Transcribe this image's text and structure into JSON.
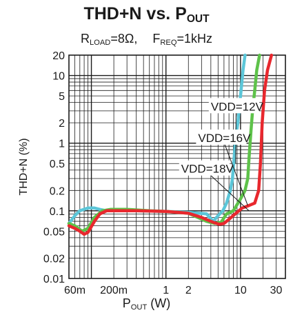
{
  "chart_data": {
    "type": "line",
    "title_main": "THD+N vs. P",
    "title_sub": "OUT",
    "conditions": [
      {
        "prefix": "R",
        "sub": "LOAD",
        "suffix": "=8Ω,"
      },
      {
        "prefix": "F",
        "sub": "REQ",
        "suffix": "=1kHz"
      }
    ],
    "xlabel_main": "P",
    "xlabel_sub": "OUT",
    "xlabel_unit": " (W)",
    "ylabel": "THD+N (%)",
    "xscale": "log",
    "yscale": "log",
    "xlim": [
      0.05,
      40
    ],
    "ylim": [
      0.01,
      20
    ],
    "grid": true,
    "xticks": [
      {
        "value": 0.06,
        "label": "60m"
      },
      {
        "value": 0.2,
        "label": "200m"
      },
      {
        "value": 1,
        "label": "1"
      },
      {
        "value": 2,
        "label": "2"
      },
      {
        "value": 10,
        "label": "10"
      },
      {
        "value": 30,
        "label": "30"
      }
    ],
    "yticks": [
      {
        "value": 0.01,
        "label": "0.01"
      },
      {
        "value": 0.02,
        "label": "0.02"
      },
      {
        "value": 0.05,
        "label": "0.05"
      },
      {
        "value": 0.1,
        "label": "0.1"
      },
      {
        "value": 0.2,
        "label": "0.2"
      },
      {
        "value": 0.5,
        "label": "0.5"
      },
      {
        "value": 1,
        "label": "1"
      },
      {
        "value": 2,
        "label": "2"
      },
      {
        "value": 5,
        "label": "5"
      },
      {
        "value": 10,
        "label": "10"
      },
      {
        "value": 20,
        "label": "20"
      }
    ],
    "series": [
      {
        "name": "VDD=12V",
        "color": "#5cc6d8",
        "x": [
          0.05,
          0.06,
          0.07,
          0.09,
          0.11,
          0.13,
          0.16,
          0.2,
          0.4,
          1,
          2,
          3.5,
          4.3,
          5,
          5.8,
          6.5,
          7.3,
          7.8,
          8.2,
          8.6,
          9.2,
          10,
          10.8,
          11.5
        ],
        "y": [
          0.065,
          0.085,
          0.1,
          0.11,
          0.11,
          0.105,
          0.1,
          0.1,
          0.1,
          0.098,
          0.095,
          0.09,
          0.07,
          0.085,
          0.1,
          0.13,
          0.2,
          0.3,
          0.6,
          1.2,
          2.0,
          5,
          12,
          20
        ]
      },
      {
        "name": "VDD=16V",
        "color": "#5ec24a",
        "x": [
          0.05,
          0.06,
          0.075,
          0.09,
          0.11,
          0.14,
          0.18,
          0.3,
          0.6,
          1,
          2,
          3.5,
          4.5,
          5.5,
          6.5,
          8,
          10,
          11.5,
          12.5,
          13,
          13.8,
          14.5,
          15.5,
          16.5,
          18
        ],
        "y": [
          0.065,
          0.06,
          0.05,
          0.055,
          0.08,
          0.1,
          0.105,
          0.105,
          0.1,
          0.098,
          0.092,
          0.07,
          0.065,
          0.068,
          0.09,
          0.1,
          0.15,
          0.2,
          0.3,
          0.6,
          1.5,
          3,
          6,
          12,
          20
        ]
      },
      {
        "name": "VDD=18V",
        "color": "#e8282e",
        "x": [
          0.05,
          0.06,
          0.07,
          0.08,
          0.09,
          0.11,
          0.13,
          0.16,
          0.2,
          0.4,
          1,
          2,
          3,
          4,
          4.6,
          5.2,
          6,
          7,
          8.5,
          10.5,
          13,
          15.5,
          17.5,
          18.5,
          19.5,
          21,
          23,
          26
        ],
        "y": [
          0.06,
          0.055,
          0.05,
          0.045,
          0.048,
          0.07,
          0.09,
          0.1,
          0.1,
          0.1,
          0.098,
          0.092,
          0.08,
          0.07,
          0.066,
          0.063,
          0.065,
          0.075,
          0.09,
          0.11,
          0.12,
          0.13,
          0.2,
          0.5,
          2,
          6,
          12,
          20
        ]
      }
    ],
    "annotations": [
      {
        "text": "VDD=12V",
        "series": 0,
        "x_label": 4.0,
        "y_label": 3.5,
        "x_point": 8.6,
        "y_point": 0.5
      },
      {
        "text": "VDD=16V",
        "series": 1,
        "x_label": 2.7,
        "y_label": 1.2,
        "x_point": 12.5,
        "y_point": 0.12
      },
      {
        "text": "VDD=18V",
        "series": 2,
        "x_label": 1.6,
        "y_label": 0.42,
        "x_point": 13,
        "y_point": 0.1
      }
    ]
  }
}
